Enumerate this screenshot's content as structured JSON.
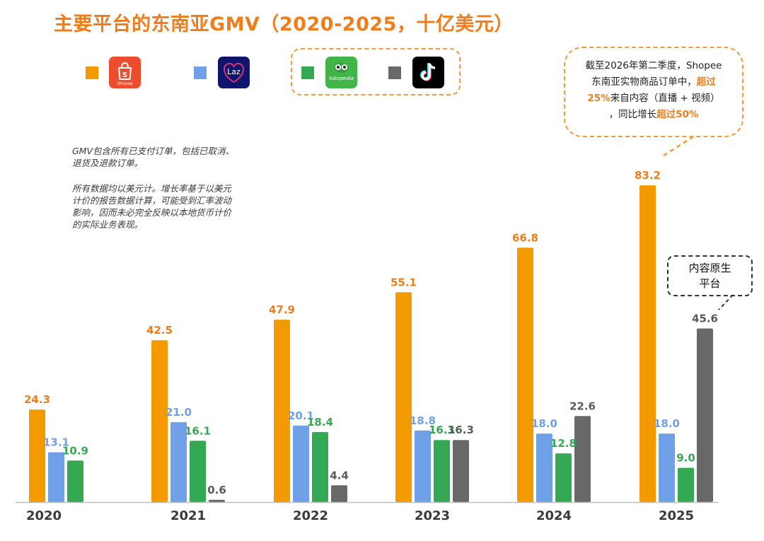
{
  "title": "主要平台的东南亚GMV（2020-2025，十亿美元）",
  "legend": [
    {
      "name": "Shopee",
      "color": "#f29a00",
      "icon": "shopee-bag-icon",
      "logo_text": "Shopee"
    },
    {
      "name": "Lazada",
      "color": "#6fa0e8",
      "icon": "lazada-heart-icon",
      "logo_text": "Laz"
    },
    {
      "name": "Tokopedia",
      "color": "#35a853",
      "icon": "tokopedia-owl-icon",
      "logo_text": "tokopedia"
    },
    {
      "name": "TikTok",
      "color": "#686868",
      "icon": "tiktok-note-icon",
      "logo_text": ""
    }
  ],
  "notes": {
    "line1": "GMV包含所有已支付订单，包括已取消、",
    "line2": "退货及退款订单。",
    "line3": "所有数据均以美元计。增长率基于以美元",
    "line4": "计价的报告数据计算，可能受到汇率波动",
    "line5": "影响，因而未必完全反映以本地货币计价",
    "line6": "的实际业务表现。"
  },
  "callouts": {
    "shopee_p1": "截至2026年第二季度，Shopee",
    "shopee_p2": "东南亚实物商品订单中，",
    "shopee_p3": "超过",
    "shopee_p4": "25%",
    "shopee_p5": "来自内容（直播 + 视频）",
    "shopee_p6": "，同比增长",
    "shopee_p7": "超过50%",
    "native_line1": "内容原生",
    "native_line2": "平台"
  },
  "chart_data": {
    "type": "bar",
    "title": "主要平台的东南亚GMV（2020-2025，十亿美元）",
    "categories": [
      "2020",
      "2021",
      "2022",
      "2023",
      "2024",
      "2025"
    ],
    "series": [
      {
        "name": "Shopee",
        "color": "#f29a00",
        "label_color": "#f07d1a",
        "values": [
          24.3,
          42.5,
          47.9,
          55.1,
          66.8,
          83.2
        ]
      },
      {
        "name": "Lazada",
        "color": "#6fa0e8",
        "label_color": "#6fa0e8",
        "values": [
          13.1,
          21.0,
          20.1,
          18.8,
          18.0,
          18.0
        ]
      },
      {
        "name": "Tokopedia",
        "color": "#35a853",
        "label_color": "#35a853",
        "values": [
          10.9,
          16.1,
          18.4,
          16.3,
          12.8,
          9.0
        ]
      },
      {
        "name": "TikTok",
        "color": "#686868",
        "label_color": "#5a5a5a",
        "values": [
          null,
          0.6,
          4.4,
          16.3,
          22.6,
          45.6
        ]
      }
    ],
    "ylim": [
      0,
      83.2
    ],
    "grid": false,
    "legend_position": "top-left"
  }
}
